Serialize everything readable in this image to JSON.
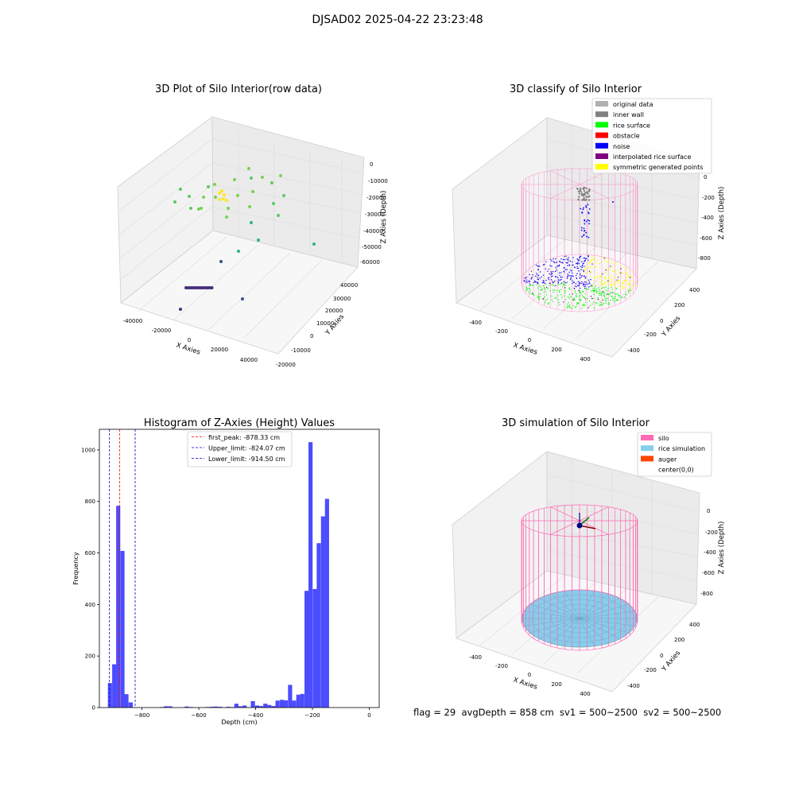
{
  "suptitle": "DJSAD02 2025-04-22 23:23:48",
  "footer": "flag = 29  avgDepth = 858 cm  sv1 = 500~2500  sv2 = 500~2500",
  "colors": {
    "hist_bar": "#4c4cff",
    "first_peak": "#ff0000",
    "limits": "#0000cc",
    "silo": "#ff69b4",
    "rice_sim": "#87ceeb",
    "auger": "#ff4500"
  },
  "chart_data": [
    {
      "type": "scatter",
      "projection": "3d",
      "title": "3D Plot of Silo Interior(row data)",
      "xlabel": "X Axies",
      "ylabel": "Y Axies",
      "zlabel": "Z Axies (Depth)",
      "x_ticks": [
        "-40000",
        "-20000",
        "0",
        "20000",
        "40000"
      ],
      "y_ticks": [
        "-20000",
        "-10000",
        "0",
        "10000",
        "20000",
        "30000",
        "40000"
      ],
      "z_ticks": [
        "0",
        "-10000",
        "-20000",
        "-30000",
        "-40000",
        "-50000",
        "-60000"
      ],
      "colormap": "viridis (colored by depth)"
    },
    {
      "type": "scatter",
      "projection": "3d",
      "title": "3D classify of Silo Interior",
      "xlabel": "X Axies",
      "ylabel": "Y Axies",
      "zlabel": "Z Axies (Depth)",
      "x_ticks": [
        "-400",
        "-200",
        "0",
        "200",
        "400"
      ],
      "y_ticks": [
        "-400",
        "-200",
        "0",
        "200",
        "400"
      ],
      "z_ticks": [
        "0",
        "-200",
        "-400",
        "-600",
        "-800"
      ],
      "legend_position": "top-right",
      "legend": [
        {
          "label": "original data",
          "color": "#b0b0b0"
        },
        {
          "label": "inner wall",
          "color": "#808080"
        },
        {
          "label": "rice surface",
          "color": "#00ff00"
        },
        {
          "label": "obstacle",
          "color": "#ff0000"
        },
        {
          "label": "noise",
          "color": "#0000ff"
        },
        {
          "label": "interpolated rice surface",
          "color": "#800080"
        },
        {
          "label": "symmetric generated points",
          "color": "#ffff00"
        }
      ]
    },
    {
      "type": "bar",
      "title": "Histogram of Z-Axies (Height) Values",
      "xlabel": "Depth (cm)",
      "ylabel": "Frequency",
      "xlim": [
        -950,
        35
      ],
      "ylim": [
        0,
        1080
      ],
      "x_ticks": [
        -800,
        -600,
        -400,
        -200,
        0
      ],
      "y_ticks": [
        0,
        200,
        400,
        600,
        800,
        1000
      ],
      "bin_width": 14.5,
      "bins": [
        {
          "x": -920,
          "value": 95
        },
        {
          "x": -905,
          "value": 168
        },
        {
          "x": -891,
          "value": 783
        },
        {
          "x": -876,
          "value": 608
        },
        {
          "x": -862,
          "value": 52
        },
        {
          "x": -847,
          "value": 20
        },
        {
          "x": -737,
          "value": 2
        },
        {
          "x": -723,
          "value": 5
        },
        {
          "x": -708,
          "value": 5
        },
        {
          "x": -650,
          "value": 4
        },
        {
          "x": -635,
          "value": 2
        },
        {
          "x": -577,
          "value": 2
        },
        {
          "x": -562,
          "value": 3
        },
        {
          "x": -548,
          "value": 4
        },
        {
          "x": -533,
          "value": 3
        },
        {
          "x": -504,
          "value": 3
        },
        {
          "x": -490,
          "value": 2
        },
        {
          "x": -475,
          "value": 15
        },
        {
          "x": -461,
          "value": 5
        },
        {
          "x": -446,
          "value": 8
        },
        {
          "x": -417,
          "value": 25
        },
        {
          "x": -402,
          "value": 8
        },
        {
          "x": -388,
          "value": 6
        },
        {
          "x": -373,
          "value": 15
        },
        {
          "x": -359,
          "value": 10
        },
        {
          "x": -344,
          "value": 6
        },
        {
          "x": -330,
          "value": 27
        },
        {
          "x": -315,
          "value": 30
        },
        {
          "x": -301,
          "value": 28
        },
        {
          "x": -286,
          "value": 88
        },
        {
          "x": -272,
          "value": 27
        },
        {
          "x": -257,
          "value": 50
        },
        {
          "x": -243,
          "value": 53
        },
        {
          "x": -228,
          "value": 453
        },
        {
          "x": -214,
          "value": 1030
        },
        {
          "x": -199,
          "value": 460
        },
        {
          "x": -185,
          "value": 638
        },
        {
          "x": -170,
          "value": 742
        },
        {
          "x": -156,
          "value": 810
        }
      ],
      "vlines": [
        {
          "label": "first_peak: -878.33 cm",
          "x": -878.33,
          "color": "#ff0000"
        },
        {
          "label": "Upper_limit: -824.07 cm",
          "x": -824.07,
          "color": "#0000cc"
        },
        {
          "label": "Lower_limit: -914.50 cm",
          "x": -914.5,
          "color": "#0000cc"
        }
      ]
    },
    {
      "type": "scatter",
      "projection": "3d",
      "title": "3D simulation of Silo Interior",
      "xlabel": "X Axies",
      "ylabel": "Y Axies",
      "zlabel": "Z Axies (Depth)",
      "x_ticks": [
        "-400",
        "-200",
        "0",
        "200",
        "400"
      ],
      "y_ticks": [
        "-400",
        "-200",
        "0",
        "200",
        "400"
      ],
      "z_ticks": [
        "0",
        "-200",
        "-400",
        "-600",
        "-800"
      ],
      "legend_position": "top-right",
      "legend": [
        {
          "label": "silo",
          "color": "#ff69b4"
        },
        {
          "label": "rice simulation",
          "color": "#87ceeb"
        },
        {
          "label": "auger",
          "color": "#ff4500"
        },
        {
          "label": "center(0,0)",
          "color": ""
        }
      ]
    }
  ]
}
